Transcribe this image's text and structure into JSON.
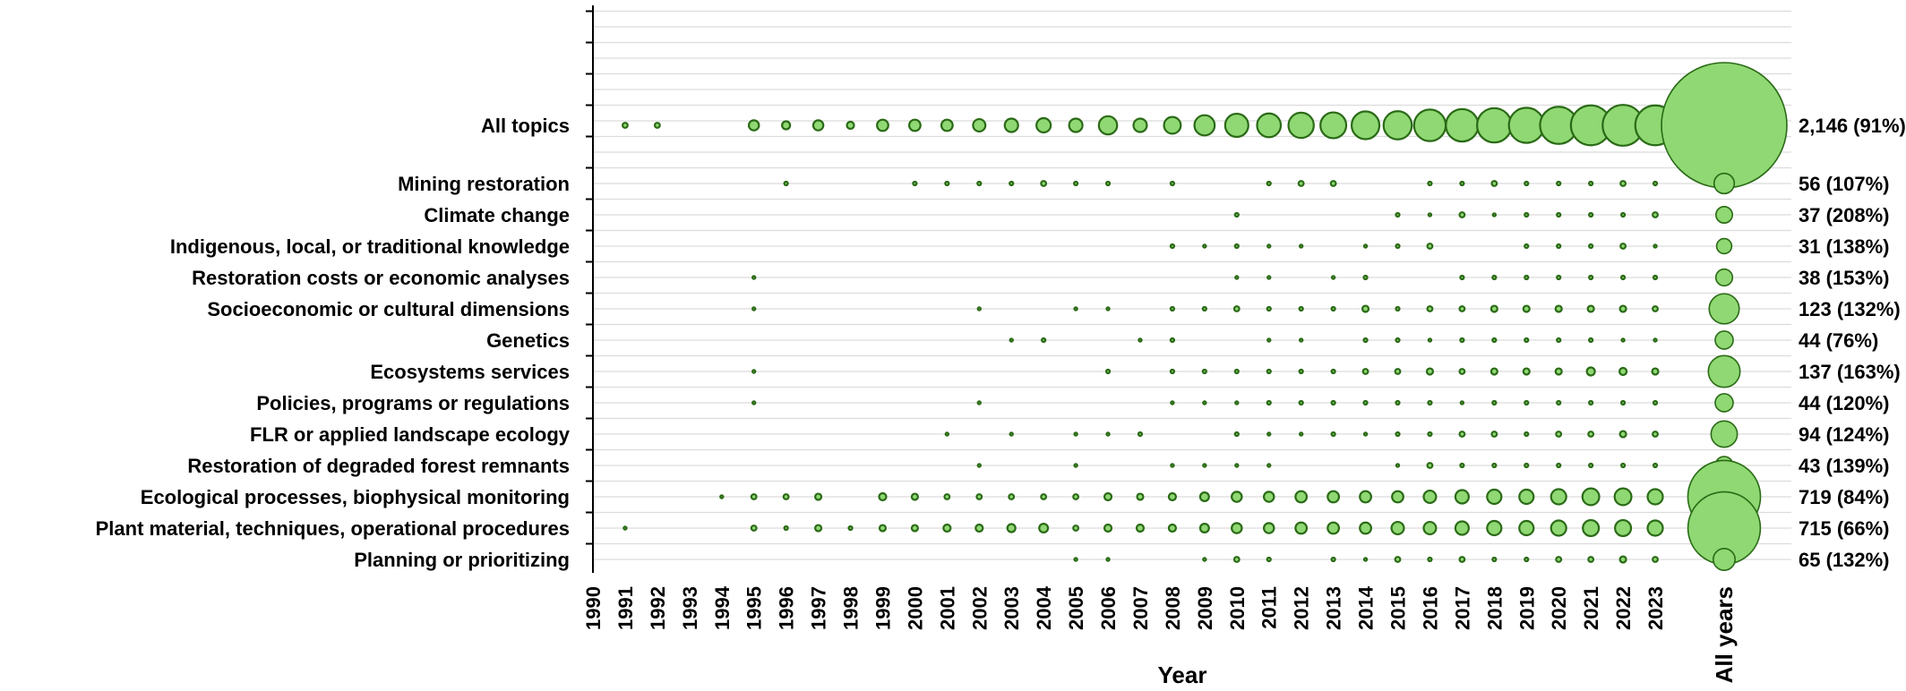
{
  "chart_data": {
    "type": "bubble",
    "xlabel": "Year",
    "ylabel": "",
    "x_categories": [
      "1990",
      "1991",
      "1992",
      "1993",
      "1994",
      "1995",
      "1996",
      "1997",
      "1998",
      "1999",
      "2000",
      "2001",
      "2002",
      "2003",
      "2004",
      "2005",
      "2006",
      "2007",
      "2008",
      "2009",
      "2010",
      "2011",
      "2012",
      "2013",
      "2014",
      "2015",
      "2016",
      "2017",
      "2018",
      "2019",
      "2020",
      "2021",
      "2022",
      "2023"
    ],
    "all_years_label": "All years",
    "grid": true,
    "bubble_color": "#8fd873",
    "bubble_stroke": "#2a6a16",
    "rows": [
      {
        "name": "All topics",
        "total": "2,146 (91%)",
        "all_years": 2146,
        "values": [
          0,
          2,
          2,
          0,
          0,
          8,
          5,
          8,
          4,
          10,
          10,
          10,
          12,
          14,
          16,
          14,
          26,
          14,
          22,
          32,
          42,
          44,
          50,
          52,
          60,
          62,
          78,
          82,
          92,
          96,
          108,
          124,
          130,
          124
        ]
      },
      {
        "name": "Mining restoration",
        "total": "56 (107%)",
        "all_years": 56,
        "values": [
          0,
          0,
          0,
          0,
          0,
          0,
          1,
          0,
          0,
          0,
          1,
          1,
          1,
          1,
          2,
          1,
          1,
          0,
          1,
          0,
          0,
          1,
          2,
          2,
          0,
          0,
          1,
          1,
          2,
          1,
          1,
          1,
          2,
          1
        ]
      },
      {
        "name": "Climate change",
        "total": "37 (208%)",
        "all_years": 37,
        "values": [
          0,
          0,
          0,
          0,
          0,
          0,
          0,
          0,
          0,
          0,
          0,
          0,
          0,
          0,
          0,
          0,
          0,
          0,
          0,
          0,
          1,
          0,
          0,
          0,
          0,
          1,
          0.5,
          2,
          0.5,
          1,
          1,
          1,
          1,
          2
        ]
      },
      {
        "name": "Indigenous, local, or traditional knowledge",
        "total": "31 (138%)",
        "all_years": 31,
        "values": [
          0,
          0,
          0,
          0,
          0,
          0,
          0,
          0,
          0,
          0,
          0,
          0,
          0,
          0,
          0,
          0,
          0,
          0,
          1,
          0.5,
          1,
          0.5,
          0.5,
          0,
          0.5,
          1,
          2,
          0,
          0,
          1,
          1,
          1,
          2,
          0.5
        ]
      },
      {
        "name": "Restoration costs or economic analyses",
        "total": "38 (153%)",
        "all_years": 38,
        "values": [
          0,
          0,
          0,
          0,
          0,
          0.5,
          0,
          0,
          0,
          0,
          0,
          0,
          0,
          0,
          0,
          0,
          0,
          0,
          0,
          0,
          0.5,
          0.5,
          0,
          0.5,
          1,
          0,
          0,
          1,
          1,
          1,
          1,
          1,
          1,
          1
        ]
      },
      {
        "name": "Socioeconomic or cultural dimensions",
        "total": "123 (132%)",
        "all_years": 123,
        "values": [
          0,
          0,
          0,
          0,
          0,
          0.5,
          0,
          0,
          0,
          0,
          0,
          0,
          0.5,
          0,
          0,
          0.5,
          0.5,
          0,
          1,
          1,
          2,
          1,
          1,
          1,
          3,
          1,
          2,
          2,
          3,
          3,
          3,
          3,
          3,
          2
        ]
      },
      {
        "name": "Genetics",
        "total": "44 (76%)",
        "all_years": 44,
        "values": [
          0,
          0,
          0,
          0,
          0,
          0,
          0,
          0,
          0,
          0,
          0,
          0,
          0,
          0.5,
          1,
          0,
          0,
          0.5,
          1,
          0,
          0,
          0.5,
          0.5,
          0,
          1,
          1,
          0.5,
          1,
          1,
          1,
          1,
          1,
          0.5,
          0.5
        ]
      },
      {
        "name": "Ecosystems services",
        "total": "137 (163%)",
        "all_years": 137,
        "values": [
          0,
          0,
          0,
          0,
          0,
          0.5,
          0,
          0,
          0,
          0,
          0,
          0,
          0,
          0,
          0,
          0,
          1,
          0,
          1,
          1,
          1,
          1,
          1,
          1,
          2,
          2,
          3,
          2,
          3,
          3,
          3,
          5,
          4,
          3
        ]
      },
      {
        "name": "Policies, programs or regulations",
        "total": "44 (120%)",
        "all_years": 44,
        "values": [
          0,
          0,
          0,
          0,
          0,
          0.5,
          0,
          0,
          0,
          0,
          0,
          0,
          0.5,
          0,
          0,
          0,
          0,
          0,
          0.5,
          0.5,
          0.5,
          1,
          1,
          1,
          1,
          1,
          1,
          0.5,
          1,
          1,
          1,
          1,
          1,
          1
        ]
      },
      {
        "name": "FLR or applied landscape ecology",
        "total": "94 (124%)",
        "all_years": 94,
        "values": [
          0,
          0,
          0,
          0,
          0,
          0,
          0,
          0,
          0,
          0,
          0,
          0.5,
          0,
          0.5,
          0,
          0.5,
          0.5,
          1,
          0,
          0,
          1,
          0.5,
          0.5,
          1,
          0.5,
          1,
          1,
          2,
          2,
          1,
          2,
          2,
          3,
          2
        ]
      },
      {
        "name": "Restoration of degraded forest remnants",
        "total": "43 (139%)",
        "all_years": 43,
        "values": [
          0,
          0,
          0,
          0,
          0,
          0,
          0,
          0,
          0,
          0,
          0,
          0,
          0.5,
          0,
          0,
          0.5,
          0,
          0,
          0.5,
          0.5,
          0.5,
          0.5,
          0,
          0,
          0,
          0.5,
          2,
          1,
          1,
          1,
          1,
          1,
          1,
          1
        ]
      },
      {
        "name": "Ecological processes, biophysical monitoring",
        "total": "719 (84%)",
        "all_years": 719,
        "values": [
          0,
          0,
          0,
          0,
          0.5,
          2,
          2,
          3,
          0,
          4,
          3,
          2,
          2,
          2,
          2,
          2,
          4,
          3,
          4,
          6,
          8,
          8,
          10,
          10,
          10,
          10,
          12,
          14,
          16,
          16,
          18,
          22,
          22,
          18
        ]
      },
      {
        "name": "Plant material, techniques, operational procedures",
        "total": "715 (66%)",
        "all_years": 715,
        "values": [
          0,
          0.5,
          0,
          0,
          0,
          2,
          1,
          3,
          1,
          3,
          3,
          4,
          4,
          5,
          6,
          2,
          4,
          4,
          4,
          6,
          8,
          8,
          10,
          10,
          10,
          12,
          12,
          14,
          16,
          16,
          18,
          20,
          20,
          18
        ]
      },
      {
        "name": "Planning or prioritizing",
        "total": "65 (132%)",
        "all_years": 65,
        "values": [
          0,
          0,
          0,
          0,
          0,
          0,
          0,
          0,
          0,
          0,
          0,
          0,
          0,
          0,
          0,
          0.5,
          0.5,
          0,
          0,
          0.5,
          2,
          1,
          0,
          1,
          0.5,
          2,
          1,
          2,
          1,
          1,
          2,
          2,
          3,
          2
        ]
      }
    ]
  }
}
